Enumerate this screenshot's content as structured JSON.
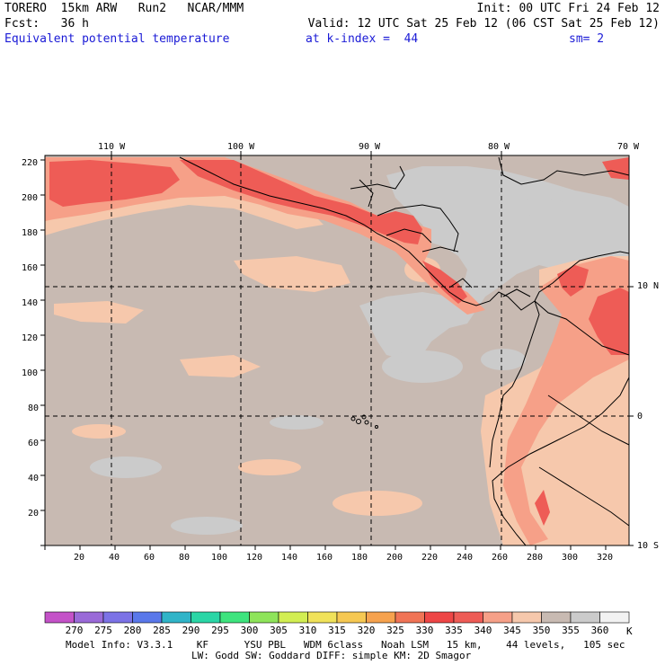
{
  "header": {
    "model": "TORERO",
    "res": "15km ARW",
    "run": "Run2",
    "org": "NCAR/MMM",
    "init": "Init: 00 UTC Fri 24 Feb 12",
    "fcst_label": "Fcst:",
    "fcst_value": "36 h",
    "valid": "Valid: 12 UTC Sat 25 Feb 12 (06 CST Sat 25 Feb 12)",
    "field": "Equivalent potential temperature",
    "level": "at k-index =  44",
    "smooth": "sm= 2"
  },
  "top_axis": [
    "110 W",
    "100 W",
    "90 W",
    "80 W",
    "70 W"
  ],
  "right_axis": [
    "10 N",
    "0",
    "10 S"
  ],
  "left_axis": [
    "220",
    "200",
    "180",
    "160",
    "140",
    "120",
    "100",
    "80",
    "60",
    "40",
    "20"
  ],
  "bottom_axis": [
    "20",
    "40",
    "60",
    "80",
    "100",
    "120",
    "140",
    "160",
    "180",
    "200",
    "220",
    "240",
    "260",
    "280",
    "300",
    "320"
  ],
  "colorbar": {
    "labels": [
      "270",
      "275",
      "280",
      "285",
      "290",
      "295",
      "300",
      "305",
      "310",
      "315",
      "320",
      "325",
      "330",
      "335",
      "340",
      "345",
      "350",
      "355",
      "360"
    ],
    "unit": "K",
    "colors": [
      "#c452c8",
      "#9a6ad8",
      "#7c72e6",
      "#5a78ea",
      "#30b4c8",
      "#2ad6a6",
      "#3ee47e",
      "#8ee45a",
      "#d2ee52",
      "#f0e25a",
      "#f6c852",
      "#f6a24e",
      "#f07456",
      "#ee4646",
      "#ee5c56",
      "#f6a088",
      "#f6c8ac",
      "#c8bab2",
      "#cbcbcb",
      "#f2f2f2"
    ]
  },
  "footer": {
    "line1": "Model Info: V3.3.1    KF      YSU PBL   WDM 6class   Noah LSM   15 km,    44 levels,   105 sec",
    "line2": "LW: Godd SW: Goddard DIFF: simple KM: 2D Smagor"
  }
}
